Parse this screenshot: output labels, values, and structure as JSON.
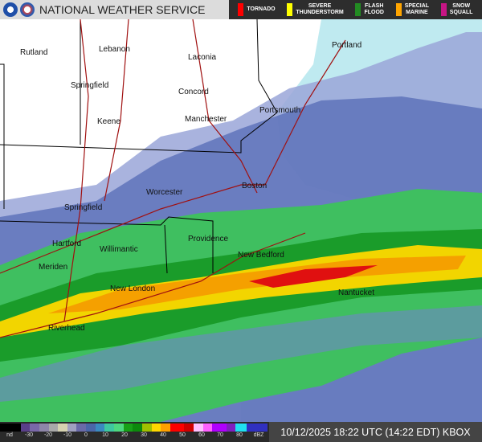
{
  "header": {
    "title": "NATIONAL WEATHER SERVICE",
    "warnings": [
      {
        "label": "TORNADO",
        "color": "#ff0000"
      },
      {
        "label": "SEVERE\nTHUNDERSTORM",
        "color": "#ffff00"
      },
      {
        "label": "FLASH\nFLOOD",
        "color": "#228b22"
      },
      {
        "label": "SPECIAL\nMARINE",
        "color": "#ffa500"
      },
      {
        "label": "SNOW\nSQUALL",
        "color": "#c71585"
      }
    ]
  },
  "map": {
    "cities": [
      "Rutland",
      "Lebanon",
      "Laconia",
      "Springfield",
      "Concord",
      "Keene",
      "Manchester",
      "Portsmouth",
      "Portland",
      "Worcester",
      "Boston",
      "Springfield",
      "Hartford",
      "Willimantic",
      "Providence",
      "New Bedford",
      "Meriden",
      "New London",
      "Nantucket",
      "Riverhead"
    ]
  },
  "legend": {
    "unit_label": "dBZ",
    "ticks": [
      "nd",
      "-30",
      "-20",
      "-10",
      "0",
      "10",
      "20",
      "30",
      "40",
      "50",
      "60",
      "70",
      "80",
      "dBZ"
    ]
  },
  "footer": {
    "timestamp": "10/12/2025 18:22 UTC (14:22 EDT) KBOX"
  }
}
